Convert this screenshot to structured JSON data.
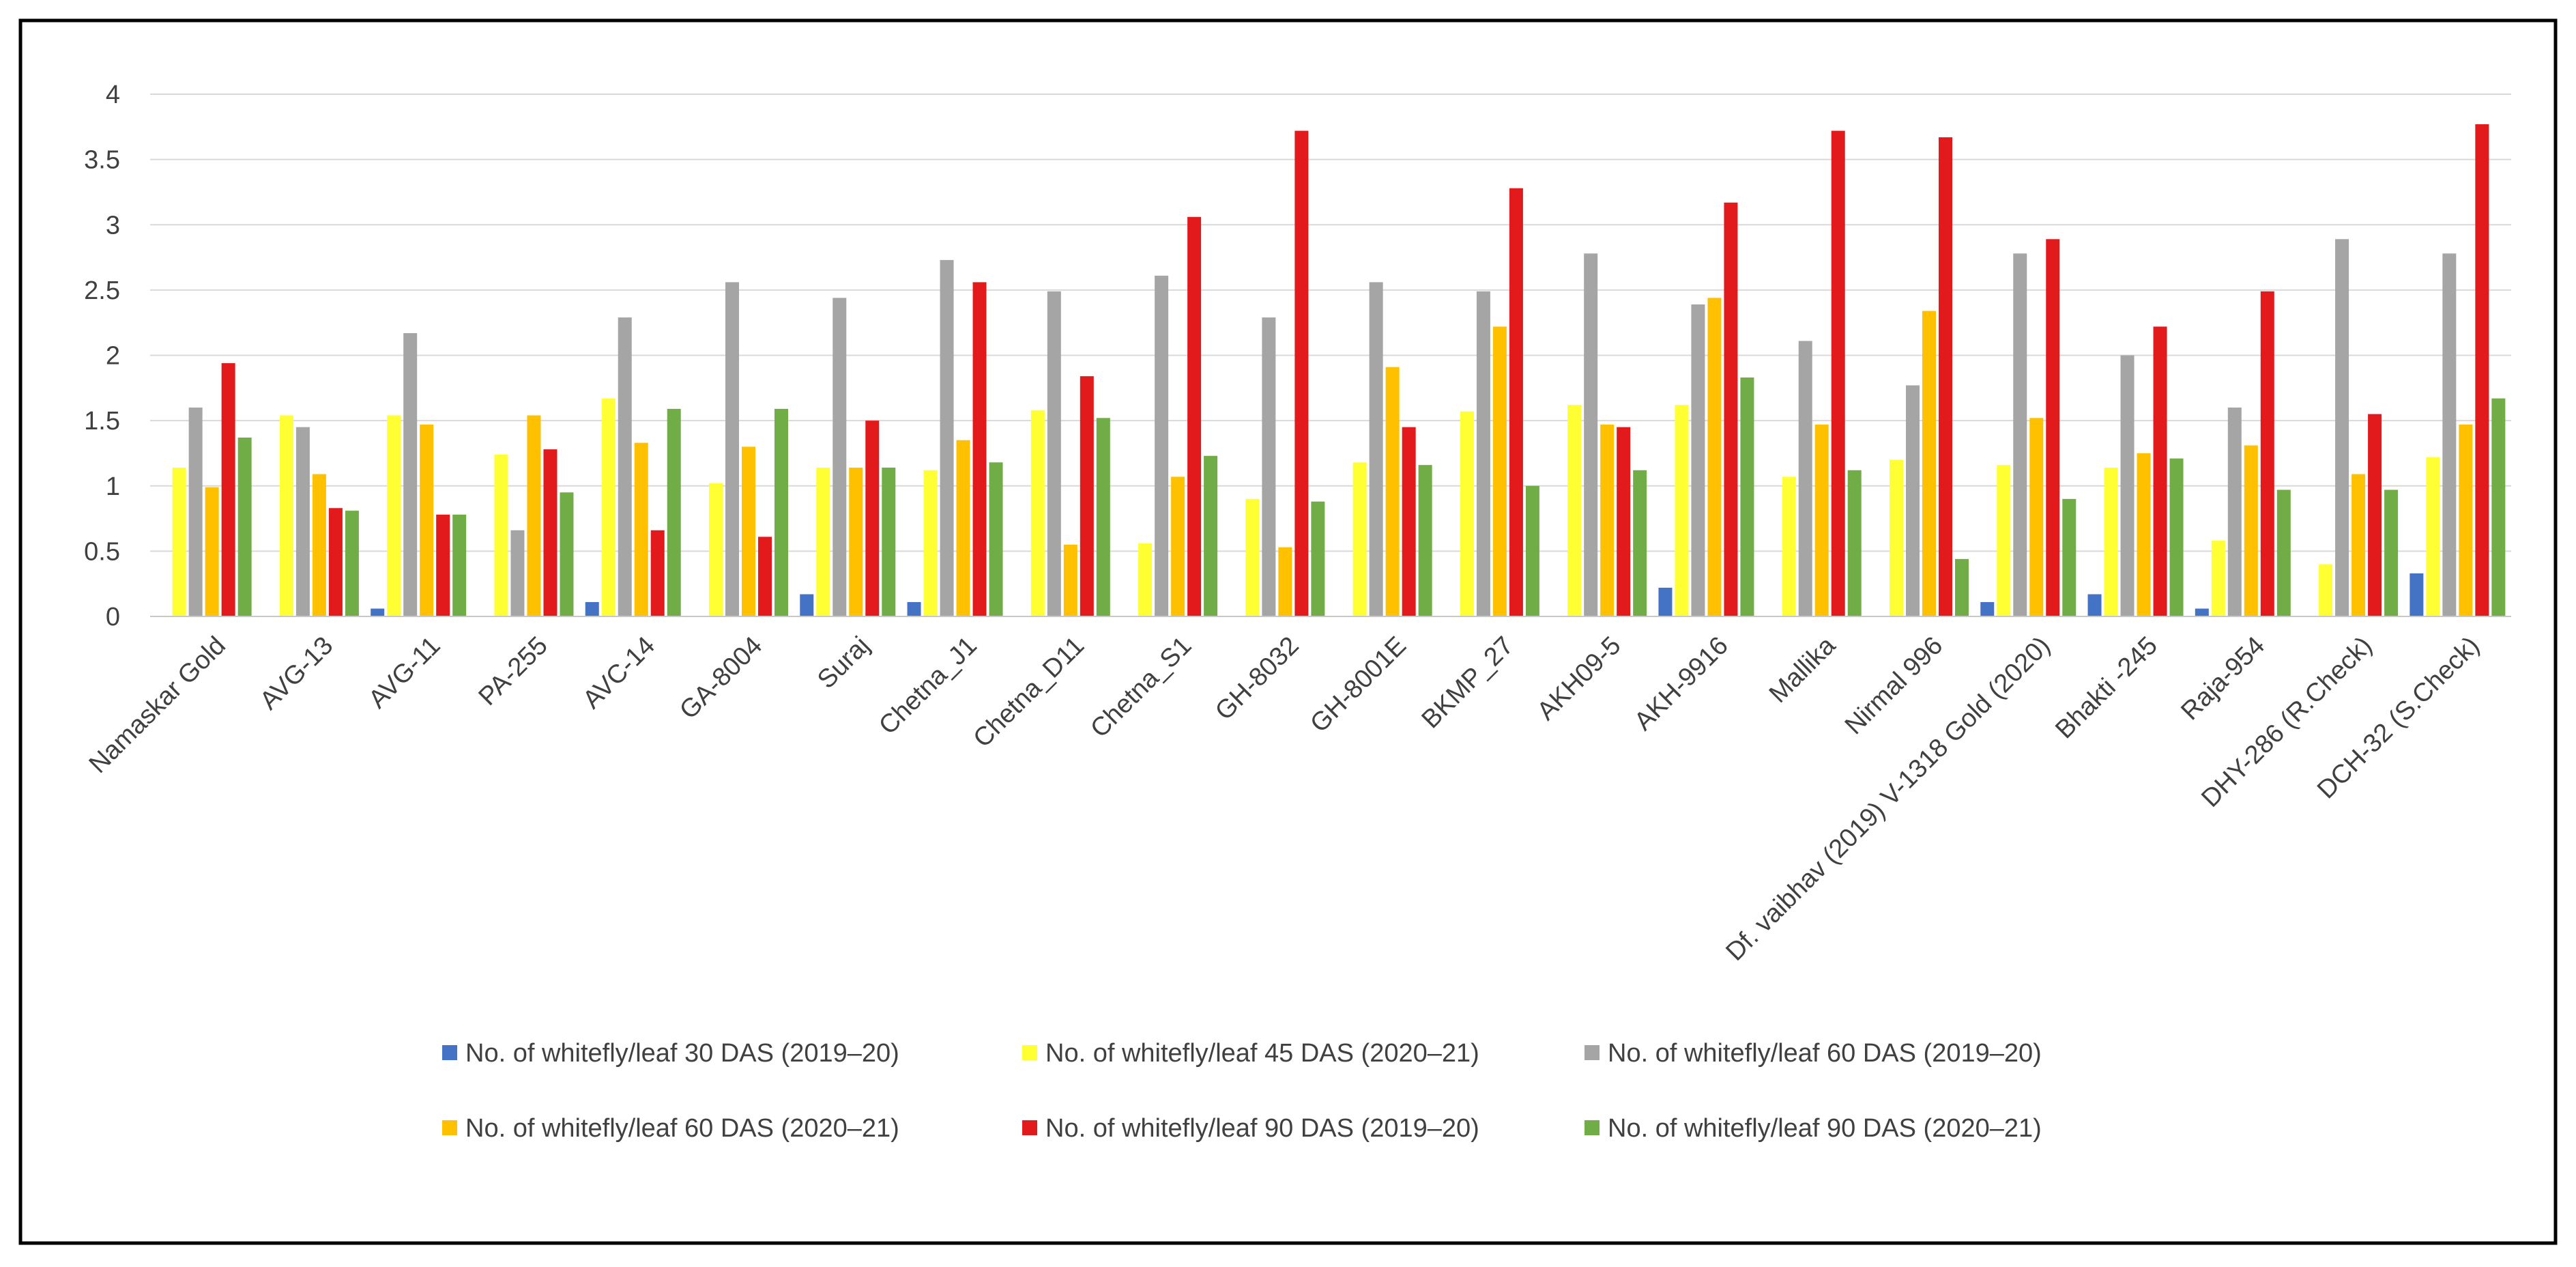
{
  "chart_data": {
    "type": "bar",
    "title": "",
    "xlabel": "",
    "ylabel": "",
    "ylim": [
      0,
      4
    ],
    "yticks": [
      "0",
      "0.5",
      "1",
      "1.5",
      "2",
      "2.5",
      "3",
      "3.5",
      "4"
    ],
    "grid": true,
    "legend_position": "bottom",
    "categories": [
      "Namaskar Gold",
      "AVG-13",
      "AVG-11",
      "PA-255",
      "AVC-14",
      "GA-8004",
      "Suraj",
      "Chetna_J1",
      "Chetna_D11",
      "Chetna_S1",
      "GH-8032",
      "GH-8001E",
      "BKMP_27",
      "AKH09-5",
      "AKH-9916",
      "Mallika",
      "Nirmal 996",
      "Df. vaibhav (2019) V-1318 Gold (2020)",
      "Bhakti -245",
      "Raja-954",
      "DHY-286  (R.Check)",
      "DCH-32 (S.Check)"
    ],
    "series": [
      {
        "name": "No. of whitefly/leaf 30 DAS  (2019–20)",
        "color": "#4472C4",
        "values": [
          0,
          0,
          0.06,
          0,
          0.11,
          0,
          0.17,
          0.11,
          0,
          0,
          0,
          0,
          0,
          0,
          0.22,
          0,
          0,
          0.11,
          0.17,
          0.06,
          0,
          0.33
        ]
      },
      {
        "name": "No. of whitefly/leaf 45 DAS (2020–21)",
        "color": "#FFFF33",
        "values": [
          1.14,
          1.54,
          1.54,
          1.24,
          1.67,
          1.02,
          1.14,
          1.12,
          1.58,
          0.56,
          0.9,
          1.18,
          1.57,
          1.62,
          1.62,
          1.07,
          1.2,
          1.16,
          1.14,
          0.58,
          0.4,
          1.22
        ]
      },
      {
        "name": "No. of whitefly/leaf 60 DAS (2019–20)",
        "color": "#A5A5A5",
        "values": [
          1.6,
          1.45,
          2.17,
          0.66,
          2.29,
          2.56,
          2.44,
          2.73,
          2.49,
          2.61,
          2.29,
          2.56,
          2.49,
          2.78,
          2.39,
          2.11,
          1.77,
          2.78,
          2.0,
          1.6,
          2.89,
          2.78
        ]
      },
      {
        "name": "No. of whitefly/leaf 60 DAS (2020–21)",
        "color": "#FFC000",
        "values": [
          0.99,
          1.09,
          1.47,
          1.54,
          1.33,
          1.3,
          1.14,
          1.35,
          0.55,
          1.07,
          0.53,
          1.91,
          2.22,
          1.47,
          2.44,
          1.47,
          2.34,
          1.52,
          1.25,
          1.31,
          1.09,
          1.47
        ]
      },
      {
        "name": "No. of whitefly/leaf 90 DAS (2019–20)",
        "color": "#E31A1C",
        "values": [
          1.94,
          0.83,
          0.78,
          1.28,
          0.66,
          0.61,
          1.5,
          2.56,
          1.84,
          3.06,
          3.72,
          1.45,
          3.28,
          1.45,
          3.17,
          3.72,
          3.67,
          2.89,
          2.22,
          2.49,
          1.55,
          3.77
        ]
      },
      {
        "name": "No. of whitefly/leaf 90 DAS (2020–21)",
        "color": "#70AD47",
        "values": [
          1.37,
          0.81,
          0.78,
          0.95,
          1.59,
          1.59,
          1.14,
          1.18,
          1.52,
          1.23,
          0.88,
          1.16,
          1.0,
          1.12,
          1.83,
          1.12,
          0.44,
          0.9,
          1.21,
          0.97,
          0.97,
          1.67
        ]
      }
    ]
  }
}
